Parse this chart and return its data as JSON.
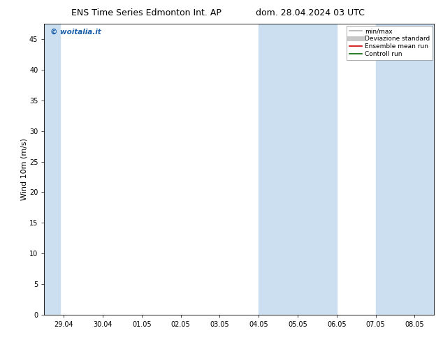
{
  "title_left": "ENS Time Series Edmonton Int. AP",
  "title_right": "dom. 28.04.2024 03 UTC",
  "ylabel": "Wind 10m (m/s)",
  "watermark": "© woitalia.it",
  "xlim_min": -0.5,
  "xlim_max": 9.5,
  "ylim": [
    0,
    47.5
  ],
  "yticks": [
    0,
    5,
    10,
    15,
    20,
    25,
    30,
    35,
    40,
    45
  ],
  "xtick_labels": [
    "29.04",
    "30.04",
    "01.05",
    "02.05",
    "03.05",
    "04.05",
    "05.05",
    "06.05",
    "07.05",
    "08.05"
  ],
  "bg_color": "#ffffff",
  "plot_bg_color": "#ffffff",
  "band_color": "#ccdff0",
  "bands": [
    [
      -0.5,
      -0.1
    ],
    [
      5.0,
      6.0
    ],
    [
      6.0,
      7.0
    ],
    [
      8.0,
      9.5
    ]
  ],
  "legend_items": [
    {
      "label": "min/max",
      "color": "#b0b0b0",
      "lw": 1.2
    },
    {
      "label": "Deviazione standard",
      "color": "#c8c8c8",
      "lw": 5
    },
    {
      "label": "Ensemble mean run",
      "color": "#cc0000",
      "lw": 1.2
    },
    {
      "label": "Controll run",
      "color": "#006600",
      "lw": 1.2
    }
  ],
  "title_fontsize": 9,
  "tick_fontsize": 7,
  "ylabel_fontsize": 8,
  "watermark_fontsize": 7.5,
  "watermark_color": "#1a5fa8"
}
